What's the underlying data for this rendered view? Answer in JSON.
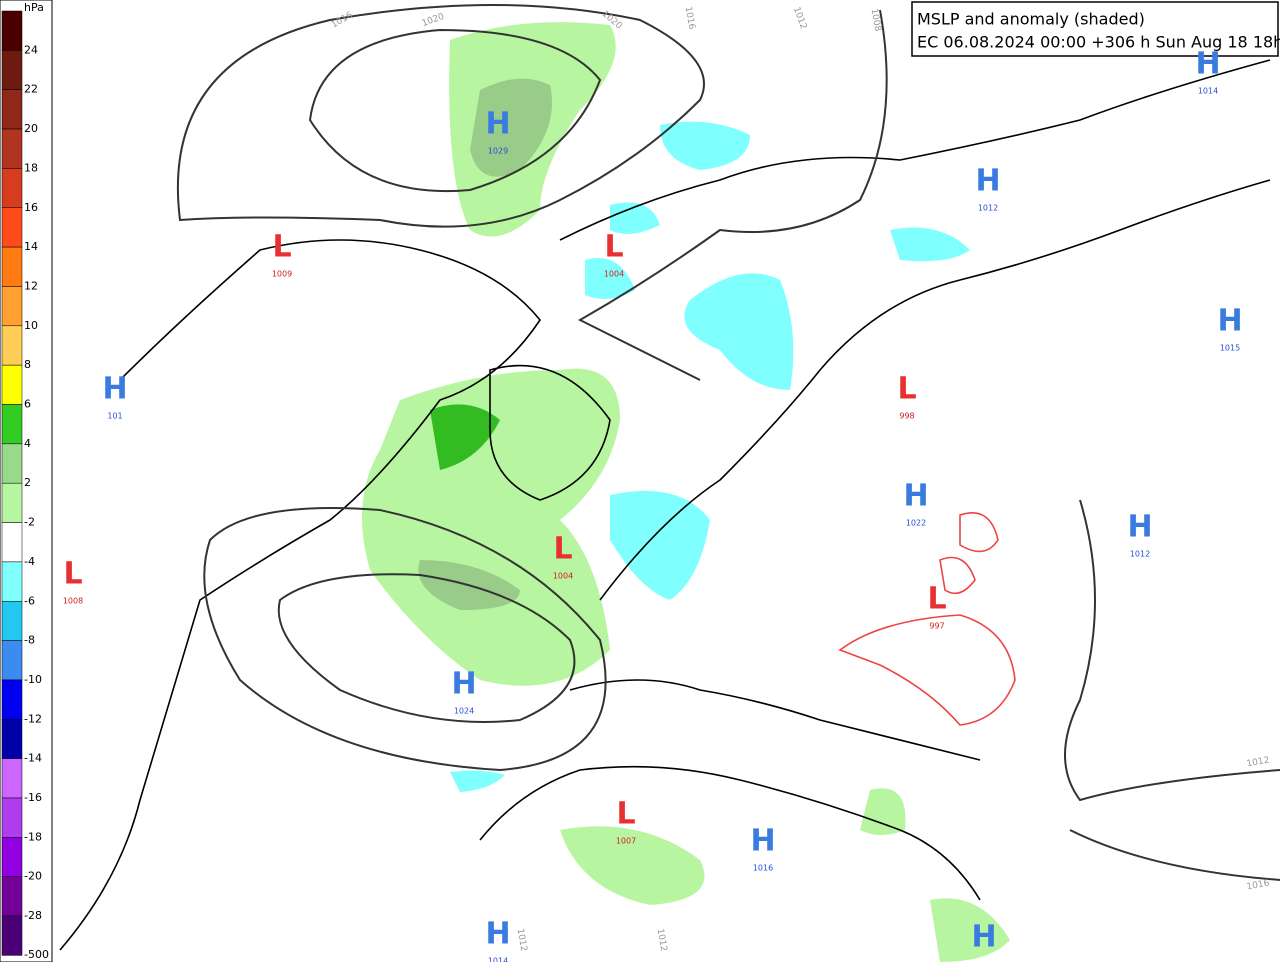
{
  "header": {
    "title": "MSLP and anomaly (shaded)",
    "subtitle": "EC 06.08.2024 00:00 +306 h Sun Aug 18 18hrs"
  },
  "colorbar": {
    "unit": "hPa",
    "ticks": [
      24,
      22,
      20,
      18,
      16,
      14,
      12,
      10,
      8,
      6,
      4,
      2,
      -2,
      -4,
      -6,
      -8,
      -10,
      -12,
      -14,
      -16,
      -18,
      -20,
      -28,
      -500
    ],
    "colors": [
      "#4a0000",
      "#6e1a10",
      "#8e2818",
      "#b03420",
      "#d63c1e",
      "#ff4a1a",
      "#ff7a10",
      "#ffa030",
      "#ffcc55",
      "#ffff00",
      "#33cc22",
      "#99d98c",
      "#b8f5a0",
      "#ffffff",
      "#80ffff",
      "#22c8f0",
      "#3a8cf0",
      "#0000f0",
      "#0000a8",
      "#cc66ff",
      "#b03cf0",
      "#9000e0",
      "#74009a",
      "#4c0078"
    ]
  },
  "centers": [
    {
      "type": "H",
      "value": "1029"
    },
    {
      "type": "L",
      "value": "1009"
    },
    {
      "type": "L",
      "value": "1004"
    },
    {
      "type": "H",
      "value": "1014"
    },
    {
      "type": "H",
      "value": "1012"
    },
    {
      "type": "H",
      "value": "1015"
    },
    {
      "type": "H",
      "value": "101"
    },
    {
      "type": "L",
      "value": "998"
    },
    {
      "type": "H",
      "value": "1022"
    },
    {
      "type": "L",
      "value": "1004"
    },
    {
      "type": "H",
      "value": "1012"
    },
    {
      "type": "L",
      "value": "1008"
    },
    {
      "type": "L",
      "value": "997"
    },
    {
      "type": "H",
      "value": "1024"
    },
    {
      "type": "L",
      "value": "1007"
    },
    {
      "type": "H",
      "value": "1016"
    },
    {
      "type": "H",
      "value": "1014"
    },
    {
      "type": "H",
      "value": ""
    }
  ],
  "isobar_labels": [
    "1016",
    "1020",
    "1020",
    "1016",
    "1012",
    "1008",
    "1012",
    "1016",
    "1012",
    "1012"
  ]
}
